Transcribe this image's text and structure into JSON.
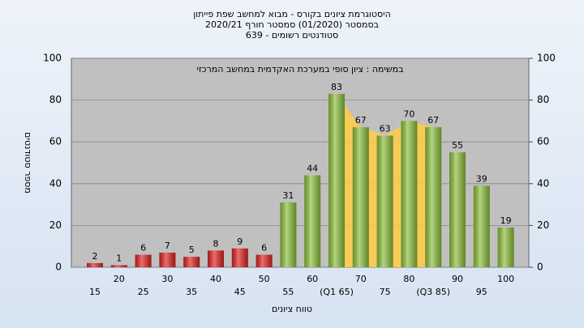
{
  "chart_data": {
    "type": "bar",
    "title": "היסטוגרמת ציונים בקורס - מבוא למחשב שפת פייתון",
    "subtitle": "בסמסטר  (01/2020)  סמסטר חורף 2020/21",
    "subtitle2": "סטודנטים רשומים - 639",
    "annotation": "במשימה : ציון סופי במערכת האקדמית במחשב המרכזי",
    "x_label": "טווח ציונים",
    "y_label": "מספר סטודנטים",
    "categories": [
      "15",
      "20",
      "25",
      "30",
      "35",
      "40",
      "45",
      "50",
      "55",
      "60",
      "(Q1 65)",
      "70",
      "75",
      "80",
      "(Q3 85)",
      "90",
      "95",
      "100"
    ],
    "values": [
      2,
      1,
      6,
      7,
      5,
      8,
      9,
      6,
      31,
      44,
      83,
      67,
      63,
      70,
      67,
      55,
      39,
      19
    ],
    "bar_colors": [
      "#e02020",
      "#e02020",
      "#e02020",
      "#e02020",
      "#e02020",
      "#e02020",
      "#e02020",
      "#e02020",
      "#8cbf3a",
      "#8cbf3a",
      "#8cbf3a",
      "#8cbf3a",
      "#8cbf3a",
      "#8cbf3a",
      "#8cbf3a",
      "#8cbf3a",
      "#8cbf3a",
      "#8cbf3a"
    ],
    "highlight_color": "#ffcc44",
    "ylim": [
      0,
      100
    ],
    "yticks": [
      0,
      20,
      40,
      60,
      80,
      100
    ],
    "y2lim": [
      0,
      100
    ],
    "y2ticks": [
      0,
      20,
      40,
      60,
      80,
      100
    ],
    "grid": true
  }
}
